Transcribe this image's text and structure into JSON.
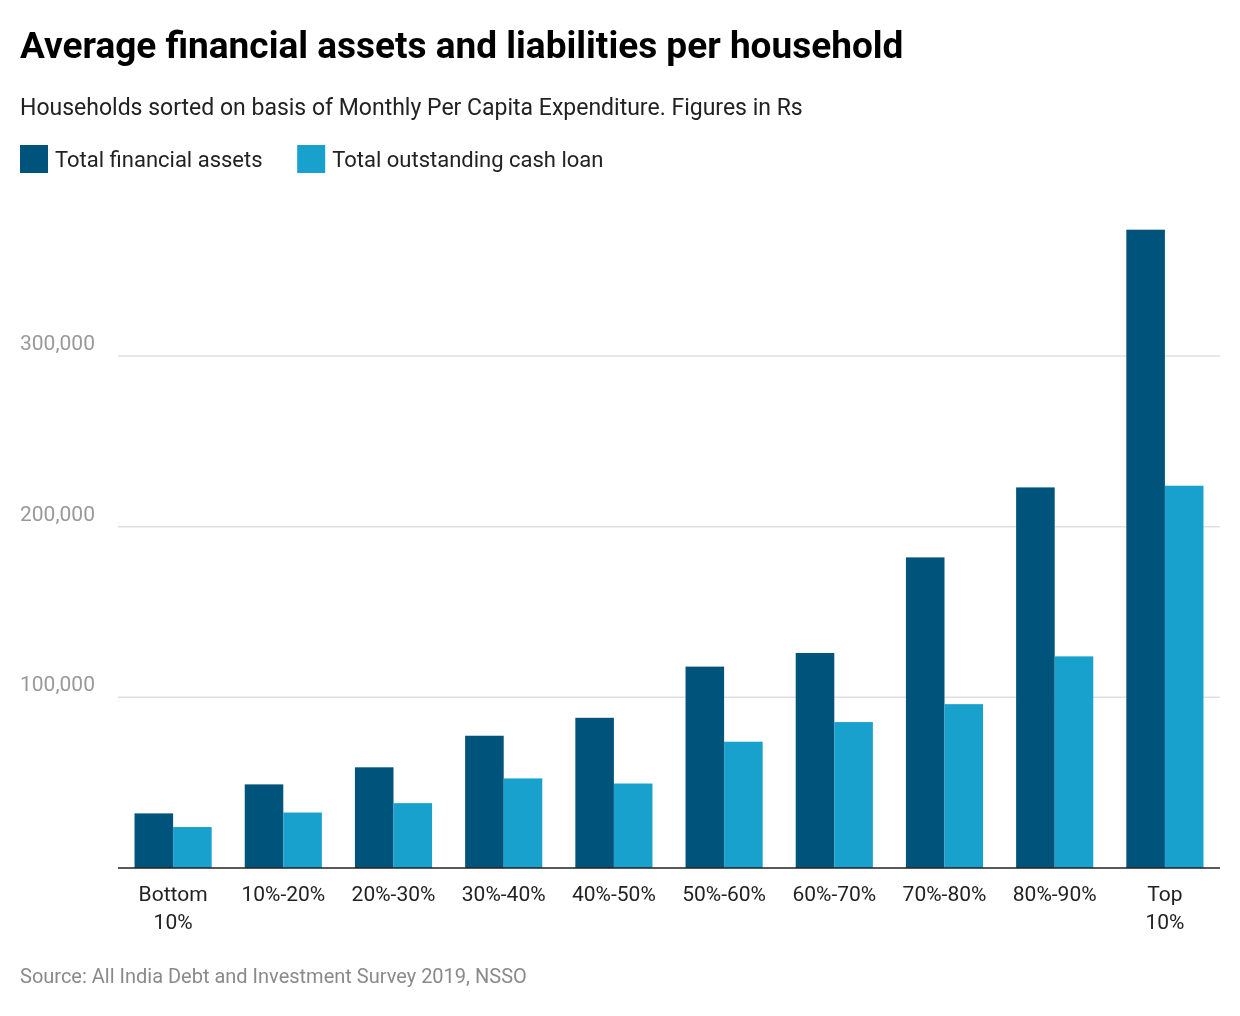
{
  "chart_data": {
    "type": "bar",
    "title": "Average financial assets and liabilities per household",
    "subtitle": "Households sorted on basis of Monthly Per Capita Expenditure. Figures in Rs",
    "categories": [
      "Bottom 10%",
      "10%-20%",
      "20%-30%",
      "30%-40%",
      "40%-50%",
      "50%-60%",
      "60%-70%",
      "70%-80%",
      "80%-90%",
      "Top 10%"
    ],
    "series": [
      {
        "name": "Total financial assets",
        "color": "#00537a",
        "values": [
          32000,
          49000,
          59000,
          77500,
          88000,
          118000,
          126000,
          182000,
          223000,
          374000
        ]
      },
      {
        "name": "Total outstanding cash loan",
        "color": "#18a1cd",
        "values": [
          24000,
          32500,
          38000,
          52500,
          49500,
          74000,
          85500,
          96000,
          124000,
          224000
        ]
      }
    ],
    "ylim": [
      0,
      375000
    ],
    "yticks": [
      {
        "value": 100000,
        "label": "100,000"
      },
      {
        "value": 200000,
        "label": "200,000"
      },
      {
        "value": 300000,
        "label": "300,000"
      }
    ],
    "grid": "y",
    "legend": "top left",
    "annotations": [
      "Source: All India Debt and Investment Survey 2019, NSSO"
    ]
  }
}
